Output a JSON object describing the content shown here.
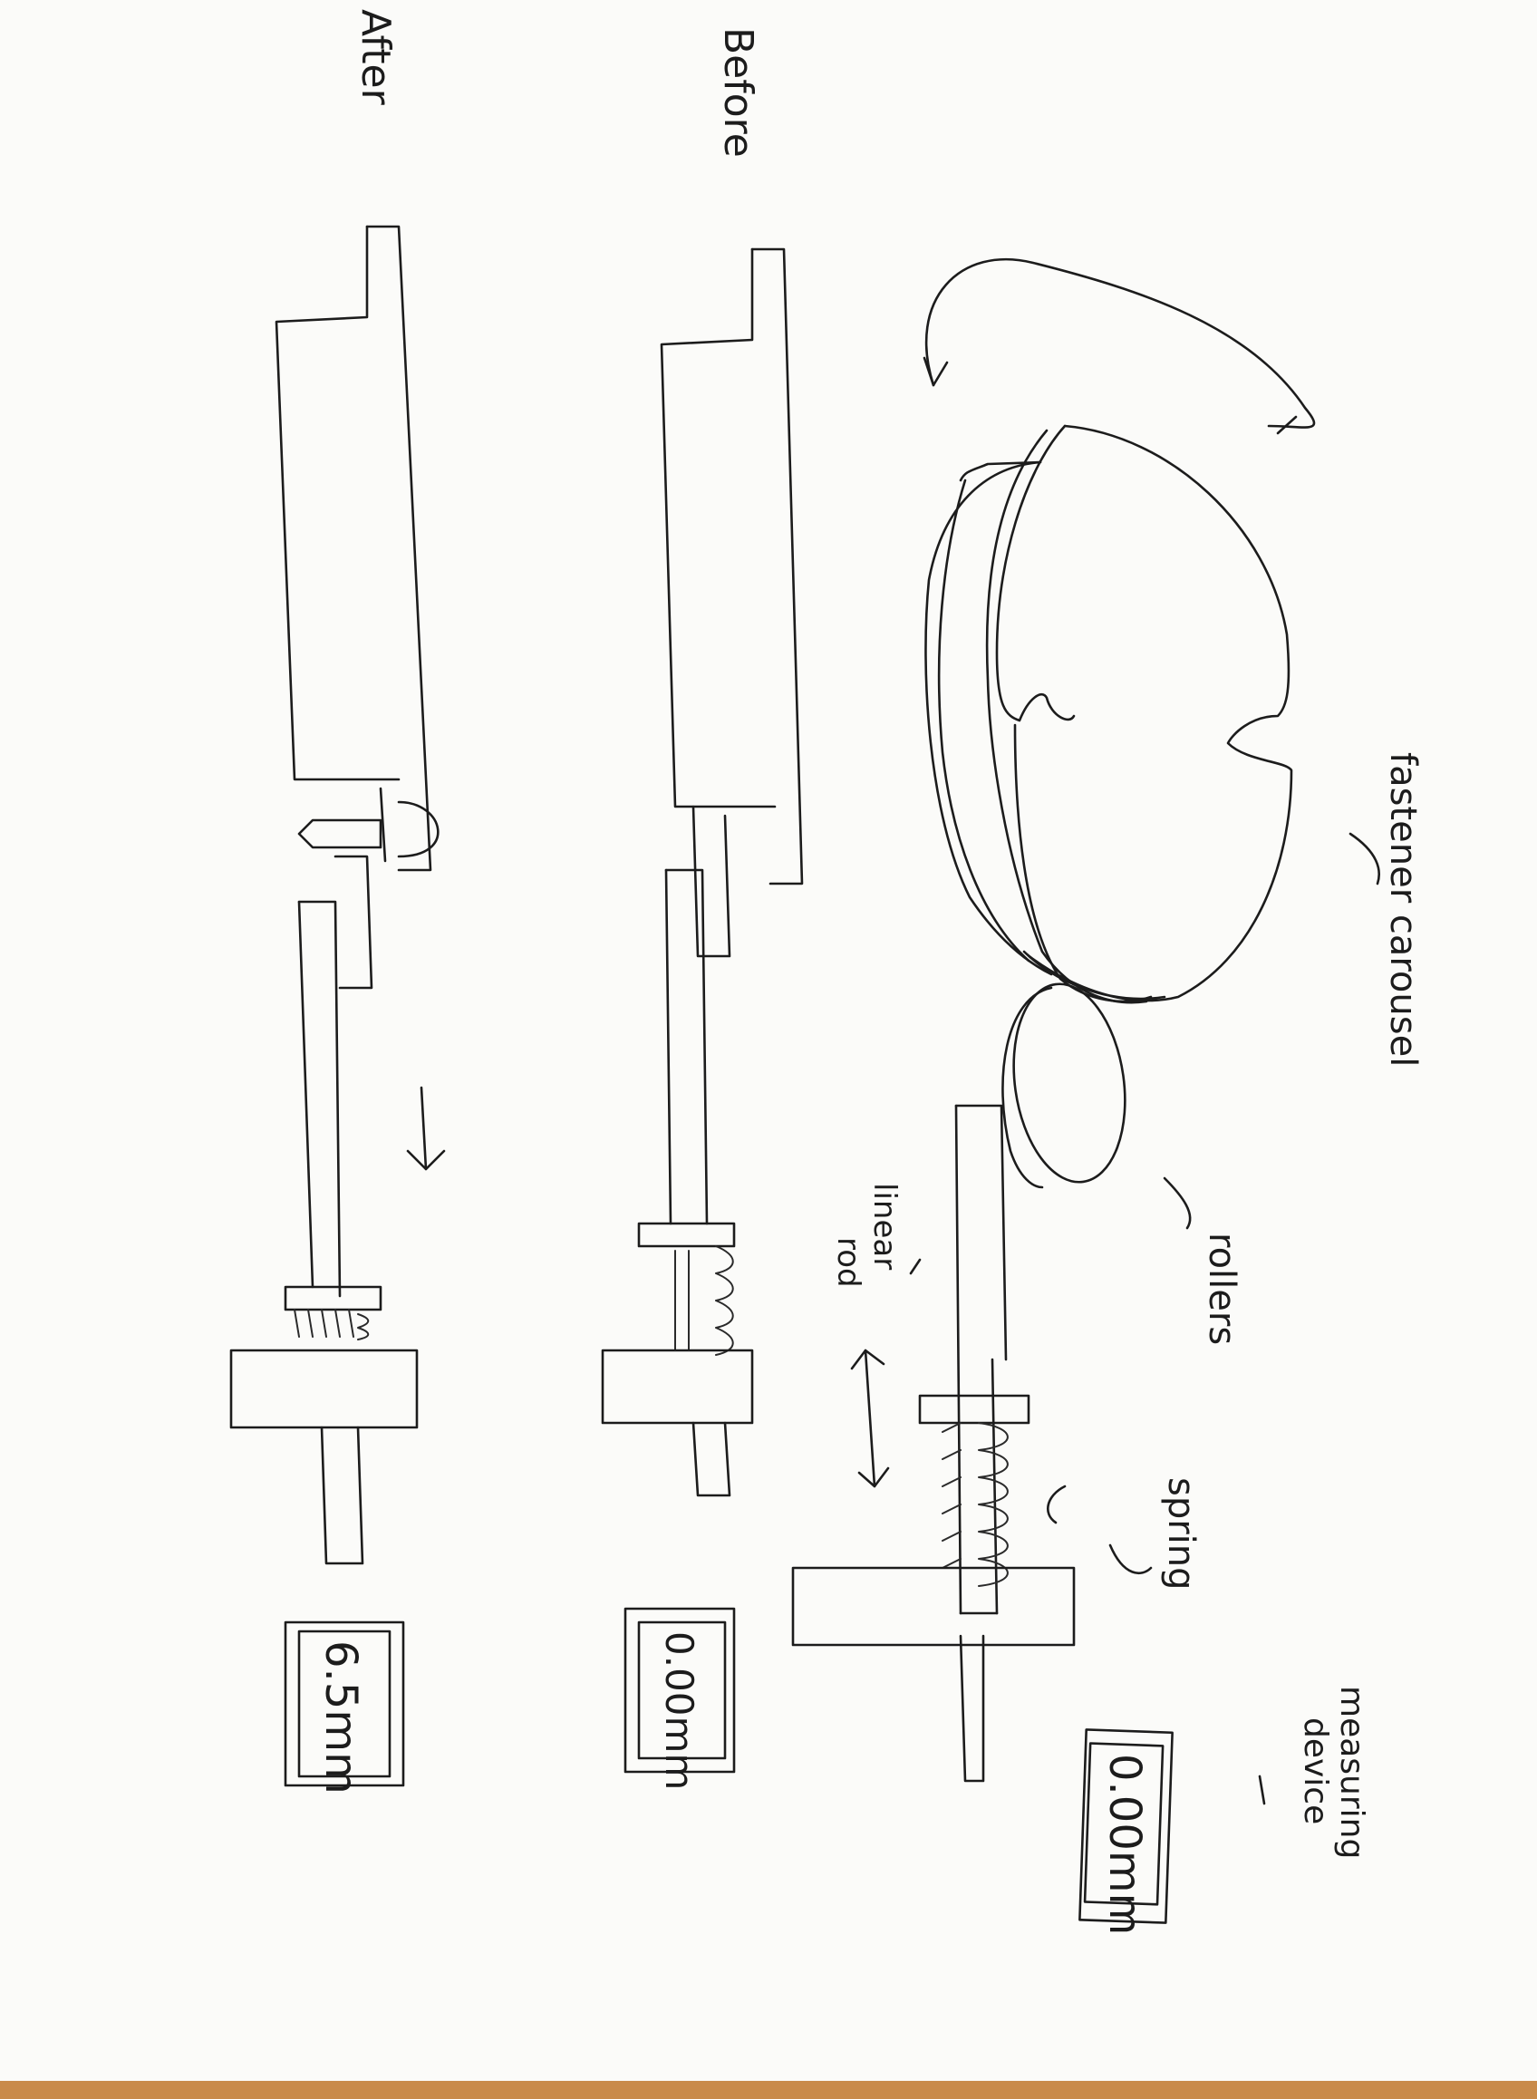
{
  "labels": {
    "fastener_carousel": "fastener carousel",
    "rollers": "rollers",
    "linear_rod_line1": "linear",
    "linear_rod_line2": "rod",
    "spring": "spring",
    "measuring_device_line1": "measuring",
    "measuring_device_line2": "device",
    "before": "Before",
    "after": "After"
  },
  "readouts": {
    "top": "0.00mm",
    "before": "0.00mm",
    "after": "6.5mm"
  },
  "colors": {
    "ink": "#1c1c1c",
    "paper": "#fbfbf9",
    "table": "#c98a4a"
  }
}
